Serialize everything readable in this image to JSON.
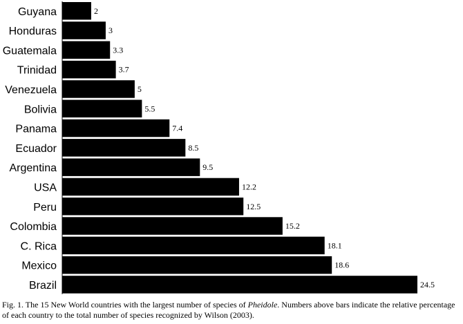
{
  "chart_data": {
    "type": "bar",
    "orientation": "horizontal",
    "categories": [
      "Guyana",
      "Honduras",
      "Guatemala",
      "Trinidad",
      "Venezuela",
      "Bolivia",
      "Panama",
      "Ecuador",
      "Argentina",
      "USA",
      "Peru",
      "Colombia",
      "C. Rica",
      "Mexico",
      "Brazil"
    ],
    "values": [
      2,
      3,
      3.3,
      3.7,
      5,
      5.5,
      7.4,
      8.5,
      9.5,
      12.2,
      12.5,
      15.2,
      18.1,
      18.6,
      24.5
    ],
    "value_labels": [
      "2",
      "3",
      "3.3",
      "3.7",
      "5",
      "5.5",
      "7.4",
      "8.5",
      "9.5",
      "12.2",
      "12.5",
      "15.2",
      "18.1",
      "18.6",
      "24.5"
    ],
    "bar_color": "#000000",
    "xlim": [
      0,
      24.5
    ],
    "grid": false,
    "legend": "none"
  },
  "caption": {
    "prefix": "Fig. 1. The 15 New World countries with the largest number of species of ",
    "genus": "Pheidole",
    "suffix": ". Numbers above bars indicate the relative percentage of each country to the total number of species recognized by Wilson (2003)."
  }
}
